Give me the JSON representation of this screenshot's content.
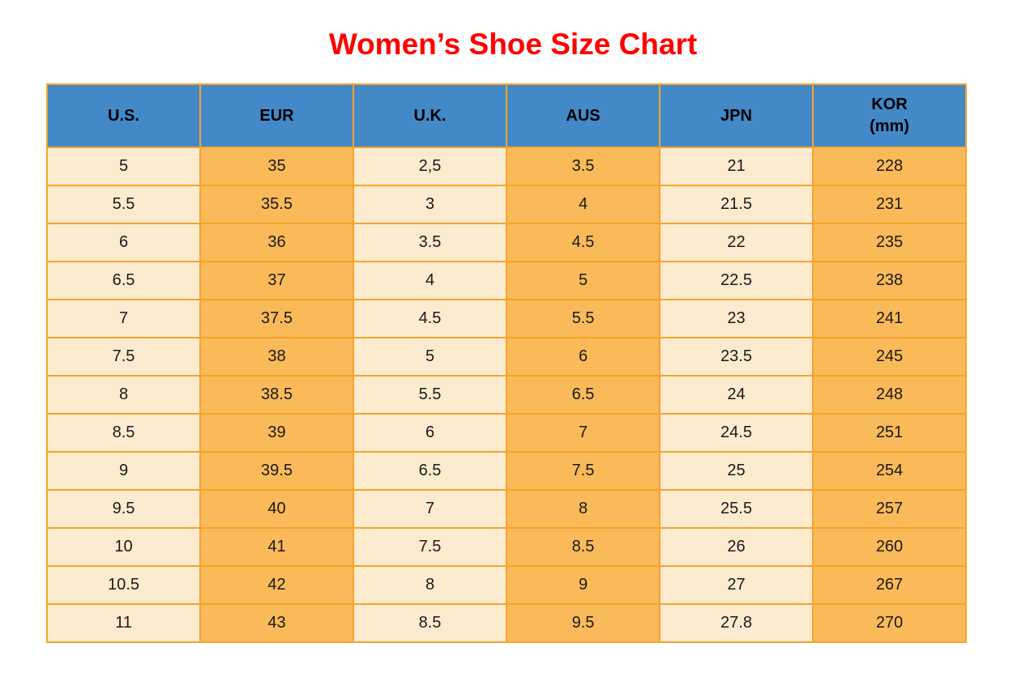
{
  "title": "Women’s Shoe Size Chart",
  "colors": {
    "title": "#FE0000",
    "header_bg": "#4389C7",
    "header_text": "#000000",
    "cell_text": "#1A1A1A",
    "col_light_bg": "#FDEBD0",
    "col_orange_bg": "#FBBA59",
    "border": "#F5A42B",
    "page_bg": "#FFFFFF"
  },
  "table": {
    "headers": [
      [
        "U.S."
      ],
      [
        "EUR"
      ],
      [
        "U.K."
      ],
      [
        "AUS"
      ],
      [
        "JPN"
      ],
      [
        "KOR",
        "(mm)"
      ]
    ],
    "rows": [
      [
        "5",
        "35",
        "2,5",
        "3.5",
        "21",
        "228"
      ],
      [
        "5.5",
        "35.5",
        "3",
        "4",
        "21.5",
        "231"
      ],
      [
        "6",
        "36",
        "3.5",
        "4.5",
        "22",
        "235"
      ],
      [
        "6.5",
        "37",
        "4",
        "5",
        "22.5",
        "238"
      ],
      [
        "7",
        "37.5",
        "4.5",
        "5.5",
        "23",
        "241"
      ],
      [
        "7.5",
        "38",
        "5",
        "6",
        "23.5",
        "245"
      ],
      [
        "8",
        "38.5",
        "5.5",
        "6.5",
        "24",
        "248"
      ],
      [
        "8.5",
        "39",
        "6",
        "7",
        "24.5",
        "251"
      ],
      [
        "9",
        "39.5",
        "6.5",
        "7.5",
        "25",
        "254"
      ],
      [
        "9.5",
        "40",
        "7",
        "8",
        "25.5",
        "257"
      ],
      [
        "10",
        "41",
        "7.5",
        "8.5",
        "26",
        "260"
      ],
      [
        "10.5",
        "42",
        "8",
        "9",
        "27",
        "267"
      ],
      [
        "11",
        "43",
        "8.5",
        "9.5",
        "27.8",
        "270"
      ]
    ]
  },
  "chart_data": {
    "type": "table",
    "title": "Women’s Shoe Size Chart",
    "columns": [
      "U.S.",
      "EUR",
      "U.K.",
      "AUS",
      "JPN",
      "KOR (mm)"
    ],
    "rows": [
      [
        "5",
        "35",
        "2,5",
        "3.5",
        "21",
        "228"
      ],
      [
        "5.5",
        "35.5",
        "3",
        "4",
        "21.5",
        "231"
      ],
      [
        "6",
        "36",
        "3.5",
        "4.5",
        "22",
        "235"
      ],
      [
        "6.5",
        "37",
        "4",
        "5",
        "22.5",
        "238"
      ],
      [
        "7",
        "37.5",
        "4.5",
        "5.5",
        "23",
        "241"
      ],
      [
        "7.5",
        "38",
        "5",
        "6",
        "23.5",
        "245"
      ],
      [
        "8",
        "38.5",
        "5.5",
        "6.5",
        "24",
        "248"
      ],
      [
        "8.5",
        "39",
        "6",
        "7",
        "24.5",
        "251"
      ],
      [
        "9",
        "39.5",
        "6.5",
        "7.5",
        "25",
        "254"
      ],
      [
        "9.5",
        "40",
        "7",
        "8",
        "25.5",
        "257"
      ],
      [
        "10",
        "41",
        "7.5",
        "8.5",
        "26",
        "260"
      ],
      [
        "10.5",
        "42",
        "8",
        "9",
        "27",
        "267"
      ],
      [
        "11",
        "43",
        "8.5",
        "9.5",
        "27.8",
        "270"
      ]
    ],
    "layout_hints": {
      "header_fill": "#4389C7",
      "column_fills_alternate": [
        "#FDEBD0",
        "#FBBA59"
      ],
      "grid": "orange borders"
    }
  }
}
